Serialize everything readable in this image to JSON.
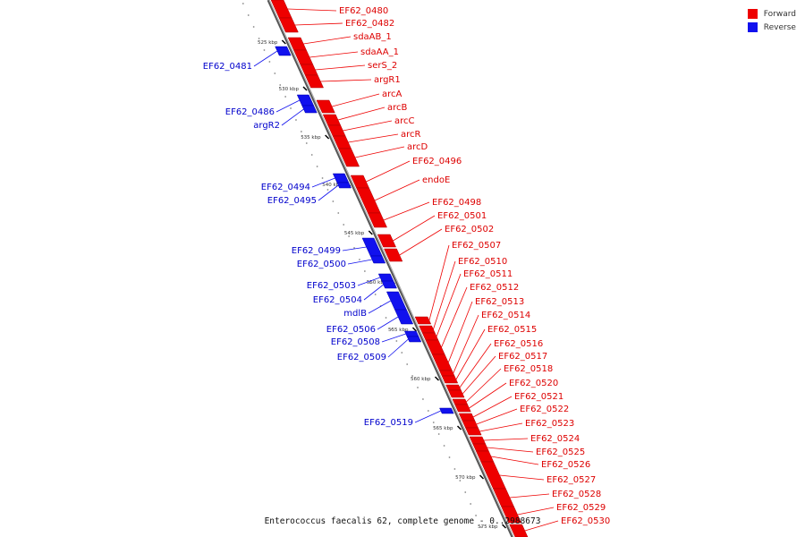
{
  "colors": {
    "forward": "#ee0000",
    "reverse": "#1111ee",
    "forward_label": "#dd0000",
    "reverse_label": "#0000cc"
  },
  "legend": [
    {
      "label": "Forward",
      "color": "#ee0000"
    },
    {
      "label": "Reverse",
      "color": "#1111ee"
    }
  ],
  "caption": "Enterococcus faecalis 62, complete genome - 0..2988673",
  "ticks": [
    "525 kbp",
    "530 kbp",
    "535 kbp",
    "540 kbp",
    "545 kbp",
    "550 kbp",
    "555 kbp",
    "560 kbp",
    "565 kbp",
    "570 kbp",
    "575 kbp"
  ],
  "forward_genes": [
    {
      "name": "EF62_0480"
    },
    {
      "name": "EF62_0482"
    },
    {
      "name": "sdaAB_1"
    },
    {
      "name": "sdaAA_1"
    },
    {
      "name": "serS_2"
    },
    {
      "name": "argR1"
    },
    {
      "name": "arcA"
    },
    {
      "name": "arcB"
    },
    {
      "name": "arcC"
    },
    {
      "name": "arcR"
    },
    {
      "name": "arcD"
    },
    {
      "name": "EF62_0496"
    },
    {
      "name": "endoE"
    },
    {
      "name": "EF62_0498"
    },
    {
      "name": "EF62_0501"
    },
    {
      "name": "EF62_0502"
    },
    {
      "name": "EF62_0507"
    },
    {
      "name": "EF62_0510"
    },
    {
      "name": "EF62_0511"
    },
    {
      "name": "EF62_0512"
    },
    {
      "name": "EF62_0513"
    },
    {
      "name": "EF62_0514"
    },
    {
      "name": "EF62_0515"
    },
    {
      "name": "EF62_0516"
    },
    {
      "name": "EF62_0517"
    },
    {
      "name": "EF62_0518"
    },
    {
      "name": "EF62_0520"
    },
    {
      "name": "EF62_0521"
    },
    {
      "name": "EF62_0522"
    },
    {
      "name": "EF62_0523"
    },
    {
      "name": "EF62_0524"
    },
    {
      "name": "EF62_0525"
    },
    {
      "name": "EF62_0526"
    },
    {
      "name": "EF62_0527"
    },
    {
      "name": "EF62_0528"
    },
    {
      "name": "EF62_0529"
    },
    {
      "name": "EF62_0530"
    }
  ],
  "reverse_genes": [
    {
      "name": "EF62_0481"
    },
    {
      "name": "EF62_0486"
    },
    {
      "name": "argR2"
    },
    {
      "name": "EF62_0494"
    },
    {
      "name": "EF62_0495"
    },
    {
      "name": "EF62_0499"
    },
    {
      "name": "EF62_0500"
    },
    {
      "name": "EF62_0503"
    },
    {
      "name": "EF62_0504"
    },
    {
      "name": "mdlB"
    },
    {
      "name": "EF62_0506"
    },
    {
      "name": "EF62_0508"
    },
    {
      "name": "EF62_0509"
    },
    {
      "name": "EF62_0519"
    }
  ]
}
